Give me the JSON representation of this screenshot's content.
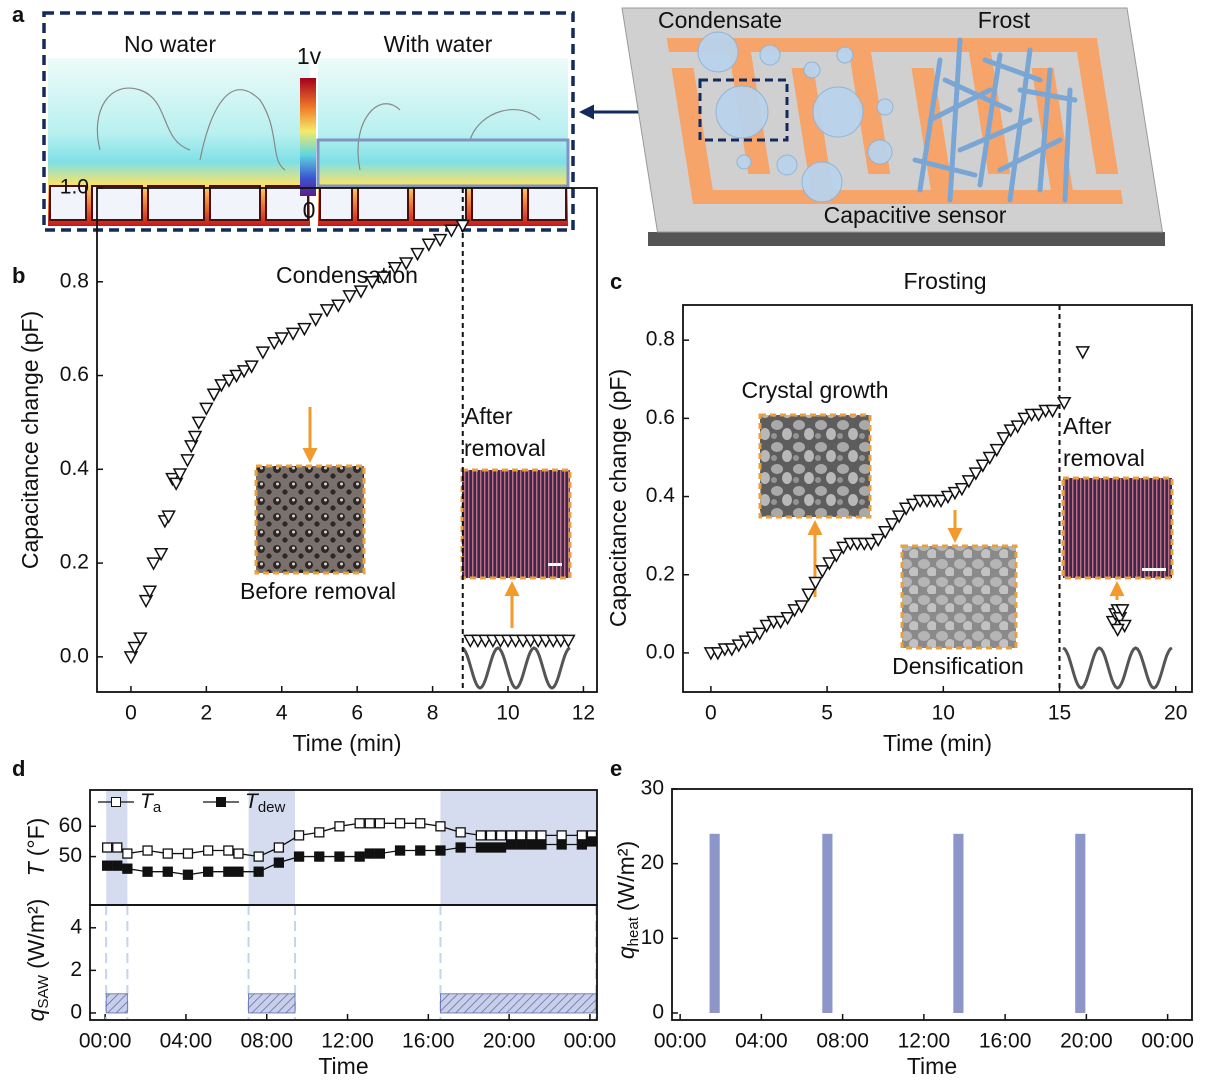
{
  "panel_a": {
    "label": "a",
    "map_titles": [
      "No water",
      "With water"
    ],
    "colorbar_labels": [
      "1v",
      "0"
    ],
    "sensor_labels": [
      "Condensate",
      "Frost",
      "Capacitive sensor"
    ]
  },
  "chart_data": [
    {
      "type": "scatter",
      "panel": "b",
      "title": "Condensation",
      "x_label": "Time (min)",
      "y_label": "Capacitance change (pF)",
      "xlim": [
        -0.9,
        12.36
      ],
      "ylim": [
        -0.075,
        1.0
      ],
      "xticks": [
        0,
        2,
        4,
        6,
        8,
        10,
        12
      ],
      "yticks": [
        {
          "value": 0,
          "label": "0.0"
        },
        0.2,
        0.4,
        0.6,
        0.8,
        {
          "value": 1,
          "label": "1.0"
        }
      ],
      "removal_time": 8.8,
      "annotations": [
        {
          "lines": [
            "After",
            "removal"
          ]
        },
        {
          "lines": [
            "Before removal"
          ]
        }
      ],
      "series": [
        {
          "x": [
            0,
            0.1,
            0.25,
            0.4,
            0.5,
            0.6,
            0.8,
            0.9,
            1.0,
            1.1,
            1.2,
            1.3,
            1.5,
            1.6,
            1.7,
            1.8,
            2.0,
            2.2,
            2.4,
            2.6,
            2.8,
            3.0,
            3.2,
            3.5,
            3.8,
            4.0,
            4.3,
            4.6,
            4.9,
            5.2,
            5.5,
            5.8,
            6.1,
            6.4,
            6.7,
            7.0,
            7.3,
            7.6,
            7.9,
            8.2,
            8.5,
            8.8
          ],
          "values": [
            0.0,
            0.02,
            0.04,
            0.12,
            0.14,
            0.2,
            0.22,
            0.29,
            0.3,
            0.38,
            0.37,
            0.39,
            0.42,
            0.45,
            0.47,
            0.5,
            0.53,
            0.56,
            0.58,
            0.59,
            0.6,
            0.61,
            0.62,
            0.65,
            0.67,
            0.68,
            0.69,
            0.7,
            0.72,
            0.74,
            0.75,
            0.77,
            0.78,
            0.8,
            0.81,
            0.83,
            0.84,
            0.86,
            0.88,
            0.89,
            0.91,
            0.92
          ]
        },
        {
          "x": [
            9.0,
            9.2,
            9.4,
            9.6,
            9.8,
            10.0,
            10.2,
            10.4,
            10.6,
            10.8,
            11.0,
            11.2,
            11.4,
            11.6
          ],
          "values": [
            0.035,
            0.035,
            0.035,
            0.035,
            0.035,
            0.035,
            0.035,
            0.035,
            0.035,
            0.035,
            0.035,
            0.035,
            0.035,
            0.035
          ]
        }
      ]
    },
    {
      "type": "scatter",
      "panel": "c",
      "title": "Frosting",
      "x_label": "Time (min)",
      "y_label": "Capacitance change (pF)",
      "xlim": [
        -1.2,
        20.7
      ],
      "ylim": [
        -0.1,
        0.89
      ],
      "xticks": [
        0,
        5,
        10,
        15,
        20
      ],
      "yticks": [
        {
          "value": 0,
          "label": "0.0"
        },
        0.2,
        0.4,
        0.6,
        0.8
      ],
      "removal_time": 15,
      "annotations": [
        {
          "lines": [
            "After",
            "removal"
          ]
        },
        {
          "lines": [
            "Crystal growth"
          ]
        },
        {
          "lines": [
            "Densification"
          ]
        }
      ],
      "series": [
        {
          "x": [
            0,
            0.3,
            0.6,
            0.9,
            1.2,
            1.5,
            1.8,
            2.1,
            2.4,
            2.7,
            3.0,
            3.3,
            3.6,
            3.9,
            4.2,
            4.5,
            4.8,
            5.1,
            5.4,
            5.7,
            6.0,
            6.3,
            6.6,
            6.9,
            7.2,
            7.5,
            7.8,
            8.1,
            8.4,
            8.7,
            9.0,
            9.3,
            9.6,
            9.9,
            10.2,
            10.5,
            10.8,
            11.1,
            11.4,
            11.7,
            12.0,
            12.3,
            12.6,
            12.9,
            13.2,
            13.5,
            13.8,
            14.1,
            14.4,
            14.7,
            15.2,
            16.0
          ],
          "values": [
            0.0,
            0.0,
            0.01,
            0.01,
            0.02,
            0.03,
            0.04,
            0.05,
            0.07,
            0.08,
            0.08,
            0.09,
            0.11,
            0.12,
            0.15,
            0.18,
            0.21,
            0.23,
            0.25,
            0.27,
            0.28,
            0.28,
            0.28,
            0.28,
            0.29,
            0.31,
            0.33,
            0.35,
            0.37,
            0.38,
            0.39,
            0.39,
            0.39,
            0.39,
            0.4,
            0.41,
            0.42,
            0.44,
            0.46,
            0.48,
            0.5,
            0.52,
            0.55,
            0.57,
            0.58,
            0.6,
            0.61,
            0.61,
            0.62,
            0.62,
            0.64,
            0.77
          ]
        },
        {
          "x": [
            17.3,
            17.4,
            17.5,
            17.6,
            17.7,
            17.8,
            17.5
          ],
          "values": [
            0.08,
            0.1,
            0.11,
            0.09,
            0.11,
            0.07,
            0.06
          ]
        }
      ]
    },
    {
      "type": "line",
      "panel": "d",
      "y_label": {
        "symbol": "T",
        "unit": "(°F)"
      },
      "xlim": [
        -0.75,
        24.35
      ],
      "ylim": [
        34,
        72
      ],
      "yticks": [
        50,
        60
      ],
      "series": [
        {
          "name": "T",
          "subscript": "a",
          "marker": "open-square",
          "x": [
            0.1,
            0.6,
            1.1,
            2.1,
            3.1,
            4.1,
            5.1,
            6.1,
            6.6,
            7.6,
            8.6,
            9.6,
            10.6,
            11.6,
            12.6,
            13.1,
            13.6,
            14.6,
            15.6,
            16.6,
            17.6,
            18.6,
            19.1,
            19.6,
            20.1,
            20.6,
            21.1,
            21.6,
            22.6,
            23.6,
            24.1
          ],
          "values": [
            53,
            53,
            51,
            52,
            51,
            51,
            52,
            52,
            51,
            50,
            53,
            57,
            58,
            60,
            61,
            61,
            61,
            61,
            61,
            60,
            58,
            57,
            57,
            57,
            57,
            57,
            57,
            57,
            57,
            57,
            57
          ]
        },
        {
          "name": "T",
          "subscript": "dew",
          "marker": "filled-square",
          "x": [
            0.1,
            0.6,
            1.1,
            2.1,
            3.1,
            4.1,
            5.1,
            6.1,
            6.6,
            7.6,
            8.6,
            9.6,
            10.6,
            11.6,
            12.6,
            13.1,
            13.6,
            14.6,
            15.6,
            16.6,
            17.6,
            18.6,
            19.1,
            19.6,
            20.1,
            20.6,
            21.1,
            21.6,
            22.6,
            23.6,
            24.1
          ],
          "values": [
            47,
            47,
            46,
            45,
            45,
            44,
            45,
            45,
            45,
            45,
            48,
            50,
            50,
            50,
            50,
            51,
            51,
            52,
            52,
            52,
            53,
            53,
            53,
            53,
            54,
            54,
            54,
            54,
            54,
            54,
            55
          ]
        }
      ]
    },
    {
      "type": "bar",
      "x_label": "Time",
      "y_label": {
        "symbol": "q",
        "subscript": "SAW",
        "unit": "(W/m²)"
      },
      "xlim": [
        -0.75,
        24.35
      ],
      "ylim": [
        -0.33,
        5.07
      ],
      "yticks": [
        0,
        2,
        4
      ],
      "xticks": [
        {
          "value": 0,
          "label": "00:00"
        },
        {
          "value": 4,
          "label": "04:00"
        },
        {
          "value": 8,
          "label": "08:00"
        },
        {
          "value": 12,
          "label": "12:00"
        },
        {
          "value": 16,
          "label": "16:00"
        },
        {
          "value": 20,
          "label": "20:00"
        },
        {
          "value": 24,
          "label": "00:00"
        }
      ],
      "x_intervals": [
        [
          0.05,
          1.1
        ],
        [
          7.1,
          9.4
        ],
        [
          16.6,
          24.3
        ]
      ],
      "values": [
        0.9,
        0.9,
        0.9
      ],
      "color": "#c9cfe8",
      "hatch": true
    },
    {
      "type": "bar",
      "panel": "e",
      "x_label": "Time",
      "y_label": {
        "symbol": "q",
        "subscript": "heat",
        "unit": "(W/m²)"
      },
      "xlim": [
        -0.4,
        25.2
      ],
      "ylim": [
        -0.94,
        30
      ],
      "yticks": [
        0,
        10,
        20,
        30
      ],
      "xticks": [
        {
          "value": 0,
          "label": "00:00"
        },
        {
          "value": 4,
          "label": "04:00"
        },
        {
          "value": 8,
          "label": "08:00"
        },
        {
          "value": 12,
          "label": "12:00"
        },
        {
          "value": 16,
          "label": "16:00"
        },
        {
          "value": 20,
          "label": "20:00"
        },
        {
          "value": 24,
          "label": "00:00"
        }
      ],
      "x_intervals": [
        [
          1.45,
          1.95
        ],
        [
          7.0,
          7.5
        ],
        [
          13.45,
          13.95
        ],
        [
          19.45,
          19.95
        ]
      ],
      "values": [
        24,
        24,
        24,
        24
      ],
      "color": "#8c96c8",
      "hatch": false
    }
  ]
}
